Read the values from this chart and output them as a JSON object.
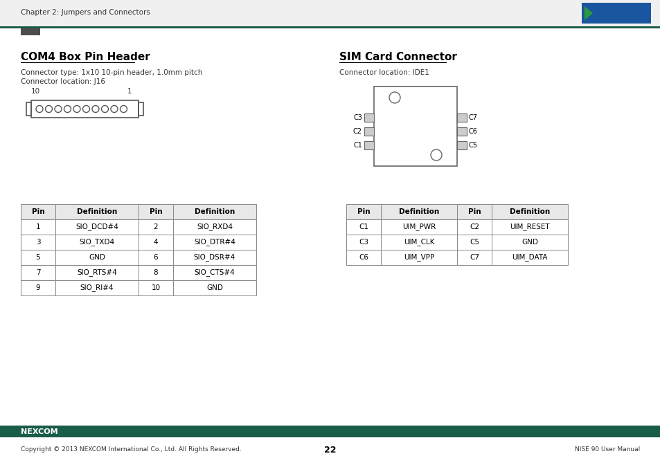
{
  "page_title_left": "Chapter 2: Jumpers and Connectors",
  "section1_title": "COM4 Box Pin Header",
  "section1_sub1": "Connector type: 1x10 10-pin header, 1.0mm pitch",
  "section1_sub2": "Connector location: J16",
  "section2_title": "SIM Card Connector",
  "section2_sub1": "Connector location: IDE1",
  "table1_headers": [
    "Pin",
    "Definition",
    "Pin",
    "Definition"
  ],
  "table1_rows": [
    [
      "1",
      "SIO_DCD#4",
      "2",
      "SIO_RXD4"
    ],
    [
      "3",
      "SIO_TXD4",
      "4",
      "SIO_DTR#4"
    ],
    [
      "5",
      "GND",
      "6",
      "SIO_DSR#4"
    ],
    [
      "7",
      "SIO_RTS#4",
      "8",
      "SIO_CTS#4"
    ],
    [
      "9",
      "SIO_RI#4",
      "10",
      "GND"
    ]
  ],
  "table2_headers": [
    "Pin",
    "Definition",
    "Pin",
    "Definition"
  ],
  "table2_rows": [
    [
      "C1",
      "UIM_PWR",
      "C2",
      "UIM_RESET"
    ],
    [
      "C3",
      "UIM_CLK",
      "C5",
      "GND"
    ],
    [
      "C6",
      "UIM_VPP",
      "C7",
      "UIM_DATA"
    ]
  ],
  "footer_text": "Copyright © 2013 NEXCOM International Co., Ltd. All Rights Reserved.",
  "footer_page": "22",
  "footer_right": "NISE 90 User Manual",
  "header_color": "#1a5c4a",
  "accent_color": "#1a5c4a",
  "top_bar_color": "#4d4d4d",
  "logo_bg": "#1a56a0",
  "bg_color": "#ffffff",
  "text_color": "#000000"
}
